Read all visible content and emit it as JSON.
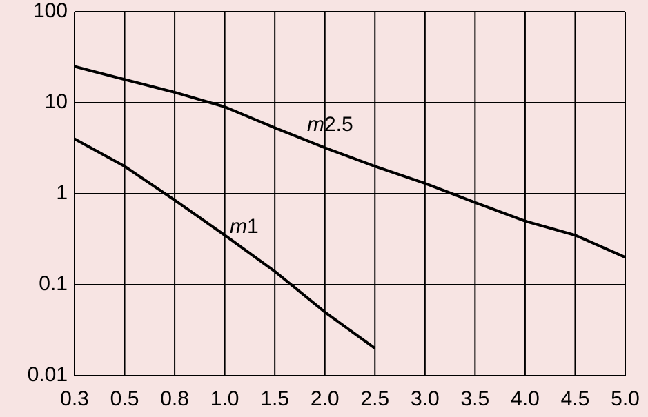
{
  "chart_data": {
    "type": "line",
    "categories": [
      "0.3",
      "0.5",
      "0.8",
      "1.0",
      "1.5",
      "2.0",
      "2.5",
      "3.0",
      "3.5",
      "4.0",
      "4.5",
      "5.0"
    ],
    "series": [
      {
        "name": "m2.5",
        "color": "#000000",
        "values": [
          25,
          18,
          13,
          9,
          5.3,
          3.2,
          2,
          1.3,
          0.8,
          0.5,
          0.35,
          0.2
        ]
      },
      {
        "name": "m1",
        "color": "#000000",
        "values": [
          4,
          2,
          0.85,
          0.35,
          0.14,
          0.05,
          0.02,
          null,
          null,
          null,
          null,
          null
        ]
      }
    ],
    "ylim": [
      0.01,
      100
    ],
    "yticks": [
      0.01,
      0.1,
      1,
      10,
      100
    ],
    "ylog": true,
    "grid": true
  }
}
